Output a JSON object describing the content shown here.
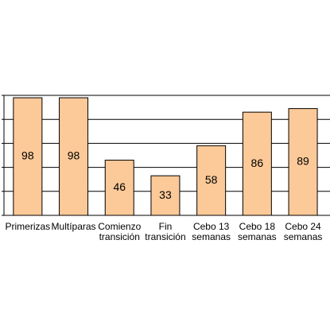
{
  "chart_data": {
    "type": "bar",
    "categories": [
      [
        "Primerizas"
      ],
      [
        "Multíparas"
      ],
      [
        "Comienzo",
        "transición"
      ],
      [
        "Fin",
        "transición"
      ],
      [
        "Cebo 13",
        "semanas"
      ],
      [
        "Cebo 18",
        "semanas"
      ],
      [
        "Cebo 24",
        "semanas"
      ]
    ],
    "values": [
      98,
      98,
      46,
      33,
      58,
      86,
      89
    ],
    "color": "#fcc998",
    "ylim": [
      0,
      100
    ],
    "yticks": [
      0,
      20,
      40,
      60,
      80,
      100
    ],
    "grid": true
  }
}
